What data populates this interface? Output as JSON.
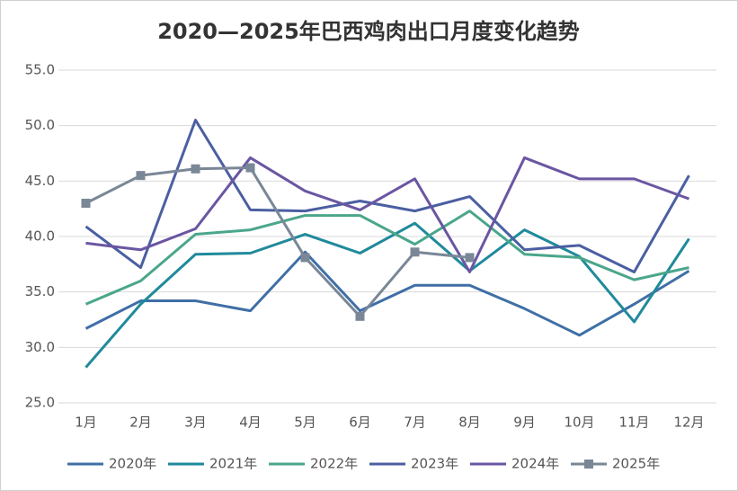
{
  "chart_data": {
    "type": "line",
    "title": "2020—2025年巴西鸡肉出口月度变化趋势",
    "categories": [
      "1月",
      "2月",
      "3月",
      "4月",
      "5月",
      "6月",
      "7月",
      "8月",
      "9月",
      "10月",
      "11月",
      "12月"
    ],
    "series": [
      {
        "name": "2020年",
        "color": "#3f6fa6",
        "values": [
          31.7,
          34.2,
          34.2,
          33.3,
          38.6,
          33.3,
          35.6,
          35.6,
          33.5,
          31.1,
          33.9,
          36.9
        ]
      },
      {
        "name": "2021年",
        "color": "#1f8a9b",
        "values": [
          28.2,
          33.9,
          38.4,
          38.5,
          40.2,
          38.5,
          41.2,
          36.9,
          40.6,
          38.2,
          32.3,
          39.8
        ]
      },
      {
        "name": "2022年",
        "color": "#4aa68b",
        "values": [
          33.9,
          36.0,
          40.2,
          40.6,
          41.9,
          41.9,
          39.3,
          42.3,
          38.4,
          38.1,
          36.1,
          37.2
        ]
      },
      {
        "name": "2023年",
        "color": "#4b5fa1",
        "values": [
          40.9,
          37.2,
          50.5,
          42.4,
          42.3,
          43.2,
          42.3,
          43.6,
          38.8,
          39.2,
          36.8,
          45.5
        ]
      },
      {
        "name": "2024年",
        "color": "#6a56a2",
        "values": [
          39.4,
          38.8,
          40.7,
          47.1,
          44.1,
          42.4,
          45.2,
          36.8,
          47.1,
          45.2,
          45.2,
          43.4
        ]
      },
      {
        "name": "2025年",
        "color": "#7a8797",
        "marker": "square",
        "values": [
          43.0,
          45.5,
          46.1,
          46.2,
          38.1,
          32.8,
          38.6,
          38.1,
          null,
          null,
          null,
          null
        ]
      }
    ],
    "ylim": [
      25,
      55
    ],
    "yticks": [
      {
        "value": 25,
        "label": "25.0"
      },
      {
        "value": 30,
        "label": "30.0"
      },
      {
        "value": 35,
        "label": "35.0"
      },
      {
        "value": 40,
        "label": "40.0"
      },
      {
        "value": 45,
        "label": "45.0"
      },
      {
        "value": 50,
        "label": "50.0"
      },
      {
        "value": 55,
        "label": "55.0"
      }
    ],
    "grid": true
  }
}
